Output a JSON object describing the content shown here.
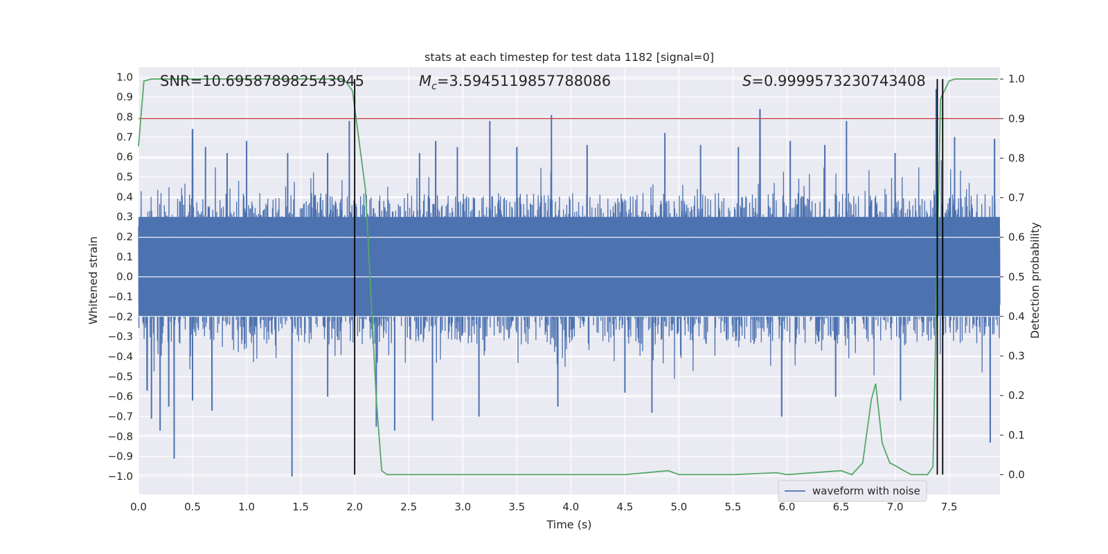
{
  "chart_data": {
    "type": "line",
    "title": "stats at each timestep for test data 1182 [signal=0]",
    "xlabel": "Time (s)",
    "ylabel": "Whitened strain",
    "y2label": "Detection probability",
    "xlim": [
      0.0,
      7.97
    ],
    "ylim": [
      -1.09,
      1.05
    ],
    "y2lim": [
      -0.05,
      1.03
    ],
    "xticks": [
      "0.0",
      "0.5",
      "1.0",
      "1.5",
      "2.0",
      "2.5",
      "3.0",
      "3.5",
      "4.0",
      "4.5",
      "5.0",
      "5.5",
      "6.0",
      "6.5",
      "7.0",
      "7.5"
    ],
    "yticks": [
      "1.0",
      "0.9",
      "0.8",
      "0.7",
      "0.6",
      "0.5",
      "0.4",
      "0.3",
      "0.2",
      "0.1",
      "0.0",
      "-0.1",
      "-0.2",
      "-0.3",
      "-0.4",
      "-0.5",
      "-0.6",
      "-0.7",
      "-0.8",
      "-0.9",
      "-1.0"
    ],
    "y2ticks": [
      "1.0",
      "0.9",
      "0.8",
      "0.7",
      "0.6",
      "0.5",
      "0.4",
      "0.3",
      "0.2",
      "0.1",
      "0.0"
    ],
    "annotations": {
      "snr": "SNR=10.695878982543945",
      "mc_symbol": "M",
      "mc_sub": "c",
      "mc_value": "=3.5945119857788086",
      "s_symbol": "S",
      "s_value": "=0.9999573230743408"
    },
    "legend": {
      "label": "waveform with noise",
      "placement": "lower-right"
    },
    "threshold": {
      "name": "threshold",
      "y2_value": 0.9,
      "color": "#c44e52"
    },
    "detection_markers_x": [
      2.0,
      7.39,
      7.44
    ],
    "waveform": {
      "name": "waveform with noise",
      "color": "#4c72b0",
      "dense_band": [
        -0.2,
        0.3
      ],
      "spikes_up": [
        [
          0.5,
          0.74
        ],
        [
          0.62,
          0.65
        ],
        [
          0.82,
          0.62
        ],
        [
          1.0,
          0.68
        ],
        [
          1.38,
          0.62
        ],
        [
          1.75,
          0.62
        ],
        [
          1.95,
          0.78
        ],
        [
          2.6,
          0.62
        ],
        [
          2.75,
          0.68
        ],
        [
          2.95,
          0.65
        ],
        [
          3.25,
          0.78
        ],
        [
          3.5,
          0.65
        ],
        [
          3.82,
          0.81
        ],
        [
          4.15,
          0.66
        ],
        [
          4.87,
          0.72
        ],
        [
          5.2,
          0.66
        ],
        [
          5.55,
          0.65
        ],
        [
          5.75,
          0.84
        ],
        [
          6.03,
          0.68
        ],
        [
          6.35,
          0.66
        ],
        [
          6.55,
          0.78
        ],
        [
          7.0,
          0.62
        ],
        [
          7.38,
          0.94
        ],
        [
          7.55,
          0.7
        ],
        [
          7.92,
          0.69
        ]
      ],
      "spikes_down": [
        [
          0.08,
          -0.57
        ],
        [
          0.12,
          -0.71
        ],
        [
          0.2,
          -0.77
        ],
        [
          0.28,
          -0.65
        ],
        [
          0.33,
          -0.91
        ],
        [
          0.5,
          -0.62
        ],
        [
          0.68,
          -0.67
        ],
        [
          1.42,
          -1.0
        ],
        [
          1.75,
          -0.6
        ],
        [
          2.2,
          -0.75
        ],
        [
          2.37,
          -0.77
        ],
        [
          2.72,
          -0.72
        ],
        [
          3.15,
          -0.7
        ],
        [
          3.88,
          -0.65
        ],
        [
          4.5,
          -0.58
        ],
        [
          4.75,
          -0.68
        ],
        [
          5.95,
          -0.7
        ],
        [
          6.45,
          -0.6
        ],
        [
          7.05,
          -0.62
        ],
        [
          7.88,
          -0.83
        ]
      ]
    },
    "detection_probability": {
      "name": "detection probability",
      "color": "#55a868",
      "x": [
        0.0,
        0.05,
        0.12,
        0.5,
        1.0,
        1.5,
        1.9,
        1.98,
        2.1,
        2.2,
        2.25,
        2.3,
        2.5,
        3.0,
        3.3,
        3.5,
        4.0,
        4.5,
        4.9,
        5.0,
        5.5,
        5.9,
        6.0,
        6.5,
        6.6,
        6.7,
        6.78,
        6.82,
        6.88,
        6.95,
        7.02,
        7.08,
        7.15,
        7.25,
        7.3,
        7.35,
        7.42,
        7.5,
        7.55,
        7.95
      ],
      "y": [
        0.83,
        0.995,
        1.0,
        1.0,
        1.0,
        1.0,
        1.0,
        0.97,
        0.72,
        0.19,
        0.01,
        -0.0,
        -0.0,
        0.0,
        -0.0,
        0.0,
        -0.0,
        0.0,
        0.01,
        0.0,
        0.0,
        0.005,
        0.0,
        0.01,
        0.0,
        0.03,
        0.19,
        0.23,
        0.08,
        0.03,
        0.02,
        0.01,
        0.0,
        0.0,
        0.0,
        0.02,
        0.95,
        0.995,
        1.0,
        1.0
      ]
    }
  }
}
